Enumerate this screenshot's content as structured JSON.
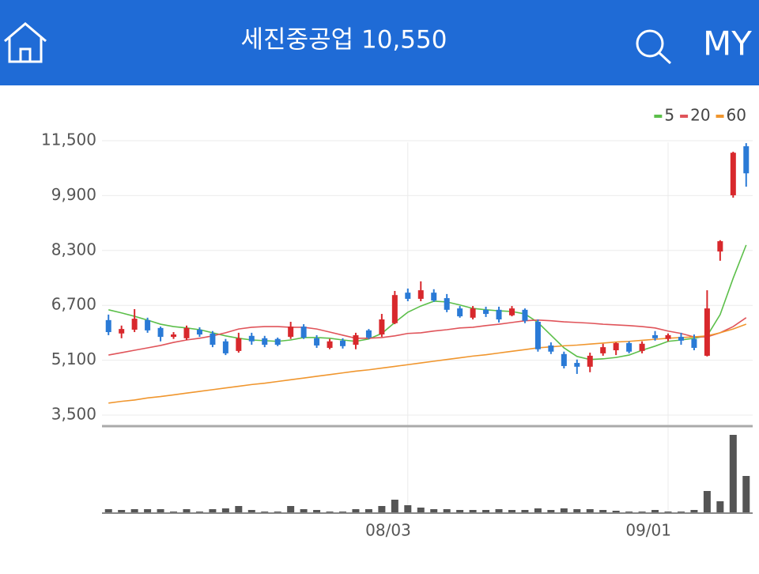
{
  "header": {
    "title": "세진중공업 10,550",
    "my": "MY"
  },
  "chart_data": {
    "type": "candlestick",
    "categories": [
      null,
      null,
      null,
      null,
      null,
      null,
      null,
      null,
      null,
      null,
      null,
      null,
      null,
      null,
      null,
      null,
      null,
      null,
      null,
      null,
      null,
      null,
      null,
      "08/03",
      null,
      null,
      null,
      null,
      null,
      null,
      null,
      null,
      null,
      null,
      null,
      null,
      null,
      null,
      null,
      null,
      null,
      null,
      null,
      "09/01",
      null,
      null,
      null,
      null,
      null,
      null
    ],
    "open": [
      6270,
      5880,
      5990,
      6270,
      6040,
      5780,
      5740,
      5990,
      5880,
      5650,
      5370,
      5810,
      5740,
      5720,
      5780,
      6080,
      5740,
      5460,
      5670,
      5550,
      5970,
      5850,
      6180,
      7070,
      6890,
      7070,
      6910,
      6610,
      6340,
      6570,
      6570,
      6410,
      6570,
      6220,
      5530,
      5280,
      5020,
      4910,
      5300,
      5390,
      5600,
      5370,
      5830,
      5720,
      5780,
      5720,
      5230,
      8270,
      9910,
      11340
    ],
    "high": [
      6430,
      6110,
      6590,
      6340,
      6080,
      5920,
      6110,
      6060,
      5950,
      5720,
      5900,
      5900,
      5810,
      5760,
      6220,
      6150,
      5830,
      5720,
      5740,
      5900,
      6010,
      6450,
      7120,
      7190,
      7400,
      7170,
      7030,
      6680,
      6680,
      6660,
      6660,
      6680,
      6610,
      6290,
      5620,
      5350,
      5120,
      5320,
      5580,
      5620,
      5650,
      5650,
      5950,
      5880,
      5900,
      5850,
      7140,
      8600,
      11180,
      11430
    ],
    "low": [
      5830,
      5740,
      5920,
      5900,
      5650,
      5720,
      5690,
      5780,
      5480,
      5250,
      5320,
      5550,
      5480,
      5510,
      5720,
      5720,
      5460,
      5420,
      5440,
      5420,
      5720,
      5780,
      6150,
      6820,
      6820,
      6800,
      6500,
      6340,
      6290,
      6360,
      6200,
      6380,
      6180,
      5350,
      5280,
      4860,
      4700,
      4750,
      5230,
      5250,
      5300,
      5300,
      5670,
      5650,
      5550,
      5390,
      5210,
      8000,
      9840,
      10160
    ],
    "close": [
      5920,
      6010,
      6310,
      5970,
      5780,
      5850,
      6040,
      5850,
      5550,
      5300,
      5740,
      5650,
      5550,
      5550,
      6080,
      5760,
      5530,
      5650,
      5510,
      5830,
      5760,
      6290,
      7000,
      6890,
      7140,
      6840,
      6570,
      6380,
      6610,
      6450,
      6290,
      6610,
      6250,
      5420,
      5350,
      4930,
      4910,
      5230,
      5480,
      5600,
      5350,
      5580,
      5740,
      5830,
      5670,
      5460,
      6610,
      8570,
      11150,
      10550
    ],
    "up_color": "#d8282c",
    "down_color": "#2a7ad6",
    "ylim": [
      3200,
      11800
    ],
    "yticks": [
      {
        "value": 3500,
        "label": "3,500"
      },
      {
        "value": 5100,
        "label": "5,100"
      },
      {
        "value": 6700,
        "label": "6,700"
      },
      {
        "value": 8300,
        "label": "8,300"
      },
      {
        "value": 9900,
        "label": "9,900"
      },
      {
        "value": 11500,
        "label": "11,500"
      }
    ],
    "grid": true,
    "legend": "top-right",
    "series": [
      {
        "name": "5",
        "color": "#5cbf4a",
        "values": [
          6570,
          6480,
          6380,
          6270,
          6150,
          6080,
          6040,
          5990,
          5900,
          5810,
          5740,
          5690,
          5670,
          5650,
          5690,
          5760,
          5760,
          5740,
          5690,
          5650,
          5720,
          5880,
          6200,
          6500,
          6680,
          6820,
          6800,
          6710,
          6610,
          6570,
          6540,
          6520,
          6450,
          6200,
          5830,
          5460,
          5210,
          5120,
          5140,
          5180,
          5250,
          5390,
          5510,
          5650,
          5690,
          5740,
          5810,
          6430,
          7490,
          8460
        ]
      },
      {
        "name": "20",
        "color": "#e0545a",
        "values": [
          5250,
          5320,
          5390,
          5460,
          5530,
          5620,
          5690,
          5740,
          5810,
          5900,
          6010,
          6060,
          6080,
          6080,
          6060,
          6060,
          6010,
          5920,
          5830,
          5740,
          5740,
          5760,
          5810,
          5880,
          5900,
          5950,
          5990,
          6040,
          6060,
          6110,
          6150,
          6200,
          6250,
          6270,
          6250,
          6220,
          6200,
          6180,
          6150,
          6130,
          6110,
          6080,
          6040,
          5950,
          5880,
          5780,
          5780,
          5900,
          6080,
          6340
        ]
      },
      {
        "name": "60",
        "color": "#f0962e",
        "values": [
          3850,
          3900,
          3940,
          4000,
          4040,
          4090,
          4140,
          4190,
          4240,
          4290,
          4340,
          4390,
          4430,
          4480,
          4530,
          4580,
          4630,
          4680,
          4730,
          4780,
          4820,
          4870,
          4920,
          4970,
          5020,
          5070,
          5120,
          5170,
          5220,
          5260,
          5310,
          5360,
          5410,
          5460,
          5490,
          5520,
          5540,
          5570,
          5600,
          5630,
          5650,
          5680,
          5710,
          5740,
          5760,
          5780,
          5810,
          5900,
          6010,
          6150
        ]
      }
    ],
    "volume": {
      "color": "#555555",
      "ylim": [
        0,
        100
      ],
      "values": [
        4,
        3,
        4,
        4,
        4,
        1,
        4,
        1,
        4,
        5,
        8,
        3,
        1,
        1,
        8,
        4,
        3,
        1,
        1,
        4,
        4,
        8,
        16,
        9,
        6,
        4,
        4,
        3,
        3,
        3,
        4,
        3,
        3,
        5,
        3,
        5,
        4,
        4,
        3,
        2,
        1,
        1,
        3,
        1,
        1,
        3,
        27,
        14,
        98,
        46
      ]
    }
  }
}
